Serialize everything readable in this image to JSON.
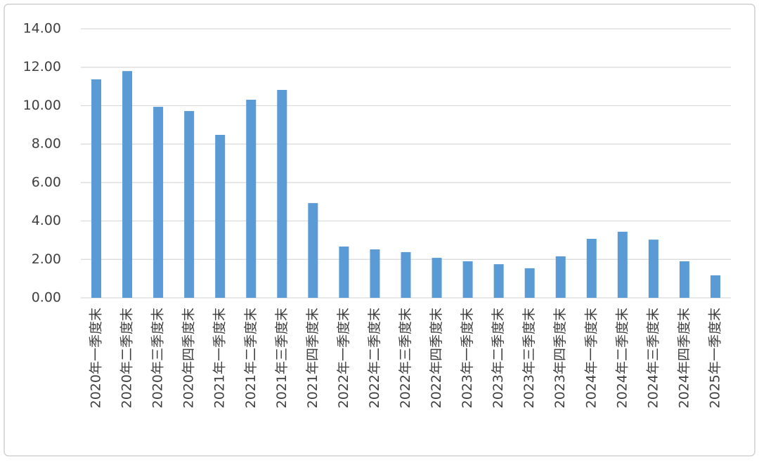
{
  "chart_data": {
    "type": "bar",
    "categories": [
      "2020年一季度末",
      "2020年二季度末",
      "2020年三季度末",
      "2020年四季度末",
      "2021年一季度末",
      "2021年二季度末",
      "2021年三季度末",
      "2021年四季度末",
      "2022年一季度末",
      "2022年二季度末",
      "2022年三季度末",
      "2022年四季度末",
      "2023年一季度末",
      "2023年二季度末",
      "2023年三季度末",
      "2023年四季度末",
      "2024年一季度末",
      "2024年二季度末",
      "2024年三季度末",
      "2024年四季度末",
      "2025年一季度末"
    ],
    "values": [
      11.37,
      11.8,
      9.94,
      9.72,
      8.48,
      10.31,
      10.82,
      4.93,
      2.67,
      2.52,
      2.38,
      2.08,
      1.9,
      1.75,
      1.54,
      2.16,
      3.07,
      3.44,
      3.03,
      1.9,
      1.17
    ],
    "color": "#5b9bd5",
    "ylim": [
      0,
      14
    ],
    "yticks": [
      {
        "value": 0,
        "label": "0.00"
      },
      {
        "value": 2,
        "label": "2.00"
      },
      {
        "value": 4,
        "label": "4.00"
      },
      {
        "value": 6,
        "label": "6.00"
      },
      {
        "value": 8,
        "label": "8.00"
      },
      {
        "value": 10,
        "label": "10.00"
      },
      {
        "value": 12,
        "label": "12.00"
      },
      {
        "value": 14,
        "label": "14.00"
      }
    ],
    "grid": true
  }
}
